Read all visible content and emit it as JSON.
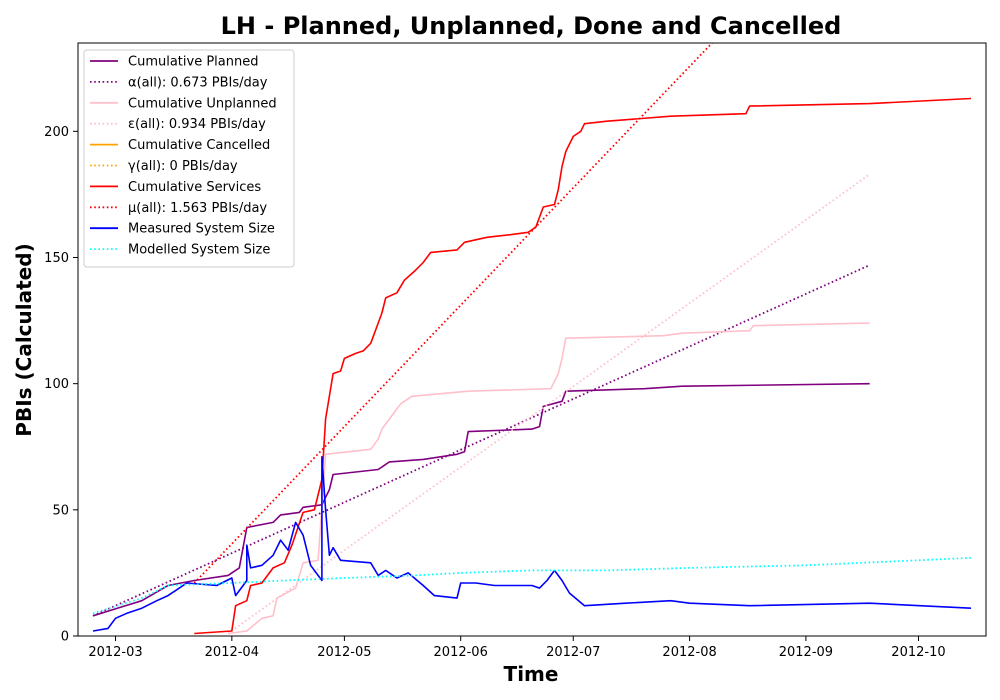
{
  "chart_data": {
    "type": "line",
    "title": "LH - Planned, Unplanned, Done  and Cancelled",
    "xlabel": "Time",
    "ylabel": "PBIs (Calculated)",
    "x_range": [
      "2012-02-20",
      "2012-10-19"
    ],
    "ylim": [
      0,
      235
    ],
    "x_ticks": [
      {
        "date": "2012-03-01",
        "label": "2012-03"
      },
      {
        "date": "2012-04-01",
        "label": "2012-04"
      },
      {
        "date": "2012-05-01",
        "label": "2012-05"
      },
      {
        "date": "2012-06-01",
        "label": "2012-06"
      },
      {
        "date": "2012-07-01",
        "label": "2012-07"
      },
      {
        "date": "2012-08-01",
        "label": "2012-08"
      },
      {
        "date": "2012-09-01",
        "label": "2012-09"
      },
      {
        "date": "2012-10-01",
        "label": "2012-10"
      }
    ],
    "y_ticks": [
      0,
      50,
      100,
      150,
      200
    ],
    "grid": false,
    "legend_position": "top-left",
    "series": [
      {
        "name": "Cumulative Planned",
        "color": "#800080",
        "style": "solid",
        "points": [
          [
            "2012-02-24",
            8
          ],
          [
            "2012-03-08",
            14
          ],
          [
            "2012-03-15",
            20
          ],
          [
            "2012-03-22",
            22
          ],
          [
            "2012-03-31",
            24
          ],
          [
            "2012-04-03",
            27
          ],
          [
            "2012-04-05",
            43
          ],
          [
            "2012-04-12",
            45
          ],
          [
            "2012-04-14",
            48
          ],
          [
            "2012-04-19",
            49
          ],
          [
            "2012-04-20",
            51
          ],
          [
            "2012-04-25",
            52
          ],
          [
            "2012-04-27",
            58
          ],
          [
            "2012-04-28",
            64
          ],
          [
            "2012-05-10",
            66
          ],
          [
            "2012-05-13",
            69
          ],
          [
            "2012-05-22",
            70
          ],
          [
            "2012-05-31",
            72
          ],
          [
            "2012-06-02",
            73
          ],
          [
            "2012-06-03",
            81
          ],
          [
            "2012-06-20",
            82
          ],
          [
            "2012-06-22",
            83
          ],
          [
            "2012-06-23",
            91
          ],
          [
            "2012-06-28",
            93
          ],
          [
            "2012-06-29",
            97
          ],
          [
            "2012-07-20",
            98
          ],
          [
            "2012-07-30",
            99
          ],
          [
            "2012-09-18",
            100
          ]
        ]
      },
      {
        "name": "α(all): 0.673 PBIs/day",
        "color": "#800080",
        "style": "dotted",
        "points": [
          [
            "2012-02-24",
            8
          ],
          [
            "2012-09-18",
            147
          ]
        ]
      },
      {
        "name": "Cumulative Unplanned",
        "color": "#ffc0cb",
        "style": "solid",
        "points": [
          [
            "2012-03-31",
            1
          ],
          [
            "2012-04-05",
            2
          ],
          [
            "2012-04-09",
            7
          ],
          [
            "2012-04-12",
            8
          ],
          [
            "2012-04-13",
            15
          ],
          [
            "2012-04-18",
            19
          ],
          [
            "2012-04-20",
            29
          ],
          [
            "2012-04-24",
            30
          ],
          [
            "2012-04-26",
            72
          ],
          [
            "2012-05-08",
            74
          ],
          [
            "2012-05-10",
            78
          ],
          [
            "2012-05-11",
            82
          ],
          [
            "2012-05-13",
            86
          ],
          [
            "2012-05-16",
            92
          ],
          [
            "2012-05-19",
            95
          ],
          [
            "2012-06-03",
            97
          ],
          [
            "2012-06-25",
            98
          ],
          [
            "2012-06-27",
            104
          ],
          [
            "2012-06-28",
            110
          ],
          [
            "2012-06-29",
            118
          ],
          [
            "2012-07-25",
            119
          ],
          [
            "2012-07-30",
            120
          ],
          [
            "2012-08-17",
            121
          ],
          [
            "2012-08-18",
            123
          ],
          [
            "2012-09-18",
            124
          ]
        ]
      },
      {
        "name": "ε(all): 0.934 PBIs/day",
        "color": "#ffc0cb",
        "style": "dotted",
        "points": [
          [
            "2012-03-31",
            1
          ],
          [
            "2012-09-18",
            183
          ]
        ]
      },
      {
        "name": "Cumulative Cancelled",
        "color": "#ffa500",
        "style": "solid",
        "points": []
      },
      {
        "name": "γ(all): 0 PBIs/day",
        "color": "#ffa500",
        "style": "dotted",
        "points": []
      },
      {
        "name": "Cumulative Services",
        "color": "#ff0000",
        "style": "solid",
        "points": [
          [
            "2012-03-22",
            1
          ],
          [
            "2012-04-01",
            2
          ],
          [
            "2012-04-02",
            12
          ],
          [
            "2012-04-05",
            14
          ],
          [
            "2012-04-06",
            20
          ],
          [
            "2012-04-09",
            21
          ],
          [
            "2012-04-12",
            27
          ],
          [
            "2012-04-15",
            29
          ],
          [
            "2012-04-17",
            36
          ],
          [
            "2012-04-20",
            49
          ],
          [
            "2012-04-23",
            50
          ],
          [
            "2012-04-25",
            62
          ],
          [
            "2012-04-26",
            86
          ],
          [
            "2012-04-28",
            104
          ],
          [
            "2012-04-30",
            105
          ],
          [
            "2012-05-01",
            110
          ],
          [
            "2012-05-04",
            112
          ],
          [
            "2012-05-06",
            113
          ],
          [
            "2012-05-08",
            116
          ],
          [
            "2012-05-10",
            124
          ],
          [
            "2012-05-11",
            128
          ],
          [
            "2012-05-12",
            134
          ],
          [
            "2012-05-15",
            136
          ],
          [
            "2012-05-17",
            141
          ],
          [
            "2012-05-20",
            145
          ],
          [
            "2012-05-22",
            148
          ],
          [
            "2012-05-24",
            152
          ],
          [
            "2012-05-31",
            153
          ],
          [
            "2012-06-02",
            156
          ],
          [
            "2012-06-05",
            157
          ],
          [
            "2012-06-08",
            158
          ],
          [
            "2012-06-14",
            159
          ],
          [
            "2012-06-19",
            160
          ],
          [
            "2012-06-21",
            162
          ],
          [
            "2012-06-23",
            170
          ],
          [
            "2012-06-26",
            171
          ],
          [
            "2012-06-27",
            177
          ],
          [
            "2012-06-28",
            186
          ],
          [
            "2012-06-29",
            192
          ],
          [
            "2012-07-01",
            198
          ],
          [
            "2012-07-03",
            200
          ],
          [
            "2012-07-04",
            203
          ],
          [
            "2012-07-10",
            204
          ],
          [
            "2012-07-27",
            206
          ],
          [
            "2012-08-16",
            207
          ],
          [
            "2012-08-17",
            210
          ],
          [
            "2012-09-18",
            211
          ],
          [
            "2012-10-15",
            213
          ]
        ]
      },
      {
        "name": "μ(all): 1.563 PBIs/day",
        "color": "#ff0000",
        "style": "dotted",
        "points": [
          [
            "2012-03-22",
            21
          ],
          [
            "2012-08-07",
            235
          ]
        ]
      },
      {
        "name": "Measured System Size",
        "color": "#0000ff",
        "style": "solid",
        "points": [
          [
            "2012-02-24",
            2
          ],
          [
            "2012-02-28",
            3
          ],
          [
            "2012-03-01",
            7
          ],
          [
            "2012-03-04",
            9
          ],
          [
            "2012-03-08",
            11
          ],
          [
            "2012-03-12",
            14
          ],
          [
            "2012-03-15",
            16
          ],
          [
            "2012-03-17",
            18
          ],
          [
            "2012-03-20",
            21
          ],
          [
            "2012-03-28",
            20
          ],
          [
            "2012-04-01",
            23
          ],
          [
            "2012-04-02",
            16
          ],
          [
            "2012-04-05",
            22
          ],
          [
            "2012-04-05",
            36
          ],
          [
            "2012-04-06",
            27
          ],
          [
            "2012-04-09",
            28
          ],
          [
            "2012-04-12",
            32
          ],
          [
            "2012-04-14",
            38
          ],
          [
            "2012-04-16",
            34
          ],
          [
            "2012-04-18",
            45
          ],
          [
            "2012-04-20",
            40
          ],
          [
            "2012-04-22",
            28
          ],
          [
            "2012-04-25",
            22
          ],
          [
            "2012-04-25",
            71
          ],
          [
            "2012-04-26",
            50
          ],
          [
            "2012-04-27",
            32
          ],
          [
            "2012-04-28",
            35
          ],
          [
            "2012-04-30",
            30
          ],
          [
            "2012-05-08",
            29
          ],
          [
            "2012-05-10",
            24
          ],
          [
            "2012-05-12",
            26
          ],
          [
            "2012-05-15",
            23
          ],
          [
            "2012-05-18",
            25
          ],
          [
            "2012-05-22",
            20
          ],
          [
            "2012-05-25",
            16
          ],
          [
            "2012-05-31",
            15
          ],
          [
            "2012-06-01",
            21
          ],
          [
            "2012-06-05",
            21
          ],
          [
            "2012-06-10",
            20
          ],
          [
            "2012-06-20",
            20
          ],
          [
            "2012-06-22",
            19
          ],
          [
            "2012-06-24",
            22
          ],
          [
            "2012-06-26",
            26
          ],
          [
            "2012-06-28",
            22
          ],
          [
            "2012-06-30",
            17
          ],
          [
            "2012-07-04",
            12
          ],
          [
            "2012-07-15",
            13
          ],
          [
            "2012-07-27",
            14
          ],
          [
            "2012-08-01",
            13
          ],
          [
            "2012-08-17",
            12
          ],
          [
            "2012-09-18",
            13
          ],
          [
            "2012-10-15",
            11
          ]
        ]
      },
      {
        "name": "Modelled System Size",
        "color": "#00ffff",
        "style": "dotted",
        "points": [
          [
            "2012-02-24",
            9
          ],
          [
            "2012-03-08",
            15
          ],
          [
            "2012-03-15",
            20
          ],
          [
            "2012-04-01",
            21
          ],
          [
            "2012-04-15",
            22
          ],
          [
            "2012-05-01",
            23
          ],
          [
            "2012-05-20",
            24
          ],
          [
            "2012-06-01",
            25
          ],
          [
            "2012-06-20",
            26
          ],
          [
            "2012-07-10",
            26
          ],
          [
            "2012-08-01",
            27
          ],
          [
            "2012-09-01",
            28
          ],
          [
            "2012-10-01",
            30
          ],
          [
            "2012-10-15",
            31
          ]
        ]
      }
    ]
  }
}
